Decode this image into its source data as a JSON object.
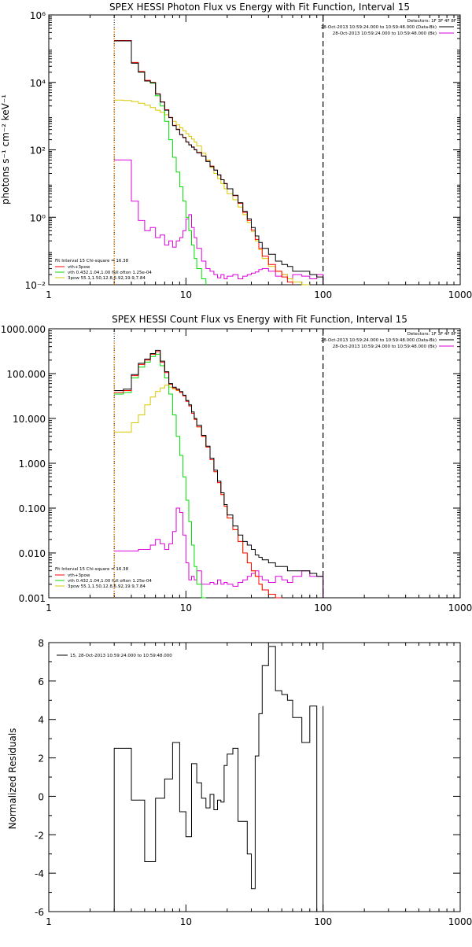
{
  "panel1": {
    "title": "SPEX HESSI Photon Flux vs Energy with Fit Function, Interval 15",
    "ylabel": "photons s⁻¹ cm⁻² keV⁻¹",
    "xticks": [
      "1",
      "10",
      "100",
      "1000"
    ],
    "yticks": [
      "10⁻²",
      "10⁰",
      "10²",
      "10⁴",
      "10⁶"
    ],
    "legend_top": [
      "Detectors: 1F 3F 4F 8F",
      "28-Oct-2013 10:59:24.000 to 10:59:48.000 (Data-Bk)",
      "28-Oct-2013 10:59:24.000 to 10:59:48.000 (Bk)"
    ],
    "legend_bottom": [
      "Fit Interval 15   Chi-square = 16.38",
      "vth+3pow",
      "vth 0.432,1.04,1.00  full ofton 1.25e-04",
      "3pow 55.1,1.50,12.8,5.92,19.9,7.84"
    ]
  },
  "panel2": {
    "title": "SPEX HESSI Count Flux vs Energy with Fit Function, Interval 15",
    "xticks": [
      "1",
      "10",
      "100",
      "1000"
    ],
    "yticks": [
      "0.001",
      "0.010",
      "0.100",
      "1.000",
      "10.000",
      "100.000",
      "1000.000"
    ],
    "legend_top": [
      "Detectors: 1F 3F 4F 8F",
      "28-Oct-2013 10:59:24.000 to 10:59:48.000 (Data-Bk)",
      "28-Oct-2013 10:59:24.000 to 10:59:48.000 (Bk)"
    ],
    "legend_bottom": [
      "Fit Interval 15   Chi-square = 16.38",
      "vth+3pow",
      "vth 0.432,1.04,1.00  full ofton 1.25e-04",
      "3pow 55.1,1.50,12.8,5.92,19.9,7.84"
    ]
  },
  "panel3": {
    "ylabel": "Normalized Residuals",
    "xticks": [
      "1",
      "10",
      "100",
      "1000"
    ],
    "yticks": [
      "-6",
      "-4",
      "-2",
      "0",
      "2",
      "4",
      "6",
      "8"
    ],
    "legend": "15, 28-Oct-2013 10:59:24.000 to 10:59:48.000"
  },
  "colors": {
    "data": "#000000",
    "total_fit": "#ff0000",
    "thermal": "#00dd00",
    "power": "#d8c800",
    "background": "#dd00dd",
    "marker": "#ff8c00"
  },
  "chart_data": [
    {
      "type": "line",
      "title": "SPEX HESSI Photon Flux vs Energy with Fit Function, Interval 15",
      "ylabel": "photons s⁻¹ cm⁻² keV⁻¹",
      "xscale": "log",
      "yscale": "log",
      "xlim": [
        1,
        1000
      ],
      "ylim": [
        0.01,
        1000000
      ],
      "vlines": [
        3,
        100
      ],
      "edges": [
        3,
        3.5,
        4,
        4.5,
        5,
        5.5,
        6,
        6.5,
        7,
        7.5,
        8,
        8.5,
        9,
        9.5,
        10,
        10.5,
        11,
        11.5,
        12,
        13,
        14,
        15,
        16,
        17,
        18,
        19,
        20,
        22,
        24,
        26,
        28,
        30,
        32,
        34,
        36,
        40,
        45,
        50,
        55,
        60,
        70,
        80,
        90,
        100
      ],
      "series": [
        {
          "name": "Data-Bk",
          "values": [
            170000,
            170000,
            37000,
            20000,
            11000,
            9800,
            4500,
            2600,
            1500,
            900,
            520,
            400,
            280,
            230,
            170,
            140,
            120,
            100,
            82,
            65,
            45,
            32,
            25,
            18,
            13,
            10,
            7,
            4.5,
            2.7,
            1.5,
            0.9,
            0.5,
            0.28,
            0.18,
            0.12,
            0.08,
            0.05,
            0.04,
            0.035,
            0.025,
            0.025,
            0.02,
            0.017
          ]
        },
        {
          "name": "vth+3pow",
          "values": [
            175000,
            175000,
            39000,
            21000,
            11500,
            10000,
            4600,
            2650,
            1550,
            920,
            530,
            410,
            285,
            235,
            172,
            142,
            122,
            102,
            84,
            66,
            46,
            33,
            25,
            18,
            13,
            10,
            7,
            4.4,
            2.6,
            1.4,
            0.8,
            0.42,
            0.22,
            0.12,
            0.07,
            0.04,
            0.025,
            0.017,
            0.012,
            0.009,
            0.008,
            0.007,
            0.006
          ]
        },
        {
          "name": "vth",
          "values": [
            170000,
            170000,
            38000,
            20000,
            11000,
            9500,
            4000,
            2000,
            700,
            200,
            60,
            22,
            8,
            3,
            1,
            0.4,
            0.15,
            0.06,
            0.03,
            0.015,
            0.008,
            0.005
          ]
        },
        {
          "name": "3pow",
          "values": [
            3000,
            2900,
            2700,
            2400,
            2100,
            1800,
            1500,
            1300,
            1100,
            900,
            700,
            550,
            450,
            370,
            300,
            250,
            210,
            170,
            130,
            80,
            50,
            30,
            20,
            14,
            10,
            7,
            5,
            3.3,
            2,
            1.2,
            0.7,
            0.38,
            0.2,
            0.11,
            0.06,
            0.035,
            0.025,
            0.02,
            0.015,
            0.012,
            0.01,
            0.008,
            0.006
          ]
        },
        {
          "name": "Bk",
          "values": [
            50,
            50,
            3,
            0.8,
            0.4,
            0.5,
            0.25,
            0.3,
            0.15,
            0.2,
            0.13,
            0.2,
            0.25,
            0.4,
            0.9,
            1.2,
            0.5,
            0.25,
            0.12,
            0.05,
            0.03,
            0.025,
            0.02,
            0.016,
            0.02,
            0.015,
            0.018,
            0.02,
            0.015,
            0.018,
            0.02,
            0.022,
            0.024,
            0.028,
            0.03,
            0.025,
            0.018,
            0.02,
            0.015,
            0.02,
            0.018,
            0.015,
            0.02
          ]
        }
      ]
    },
    {
      "type": "line",
      "title": "SPEX HESSI Count Flux vs Energy with Fit Function, Interval 15",
      "xscale": "log",
      "yscale": "log",
      "xlim": [
        1,
        1000
      ],
      "ylim": [
        0.001,
        1000
      ],
      "vlines": [
        3,
        100
      ],
      "edges": [
        3,
        3.5,
        4,
        4.5,
        5,
        5.5,
        6,
        6.5,
        7,
        7.5,
        8,
        8.5,
        9,
        9.5,
        10,
        10.5,
        11,
        11.5,
        12,
        13,
        14,
        15,
        16,
        17,
        18,
        19,
        20,
        22,
        24,
        26,
        28,
        30,
        32,
        34,
        36,
        40,
        45,
        50,
        55,
        60,
        70,
        80,
        90,
        100
      ],
      "series": [
        {
          "name": "Data-Bk",
          "values": [
            42,
            45,
            95,
            170,
            210,
            280,
            330,
            190,
            110,
            60,
            50,
            45,
            40,
            33,
            25,
            20,
            14,
            10,
            7,
            4.2,
            2.4,
            1.3,
            0.7,
            0.4,
            0.22,
            0.12,
            0.07,
            0.04,
            0.025,
            0.018,
            0.015,
            0.012,
            0.009,
            0.008,
            0.007,
            0.006,
            0.005,
            0.005,
            0.004,
            0.004,
            0.004,
            0.0035,
            0.003
          ]
        },
        {
          "name": "vth+3pow",
          "values": [
            38,
            42,
            90,
            160,
            200,
            270,
            310,
            180,
            105,
            58,
            48,
            43,
            38,
            32,
            24,
            19,
            13,
            9.5,
            6.5,
            4,
            2.3,
            1.2,
            0.65,
            0.37,
            0.2,
            0.11,
            0.06,
            0.033,
            0.018,
            0.01,
            0.006,
            0.004,
            0.003,
            0.002,
            0.0015,
            0.0012,
            0.001
          ]
        },
        {
          "name": "vth",
          "values": [
            35,
            38,
            80,
            140,
            180,
            240,
            270,
            150,
            80,
            35,
            12,
            4,
            1.5,
            0.5,
            0.15,
            0.05,
            0.015,
            0.005,
            0.002,
            0.001
          ]
        },
        {
          "name": "3pow",
          "values": [
            5,
            5,
            8,
            12,
            20,
            30,
            40,
            48,
            55,
            50,
            45,
            42,
            38,
            32,
            25,
            19,
            13,
            9.5,
            6.5,
            4,
            2.3,
            1.2,
            0.65,
            0.37,
            0.2,
            0.11,
            0.06,
            0.033,
            0.018,
            0.01,
            0.006,
            0.004,
            0.003,
            0.002,
            0.0015,
            0.0012,
            0.001
          ]
        },
        {
          "name": "Bk",
          "values": [
            0.011,
            0.011,
            0.011,
            0.012,
            0.012,
            0.015,
            0.02,
            0.016,
            0.012,
            0.016,
            0.03,
            0.1,
            0.08,
            0.025,
            0.006,
            0.0025,
            0.003,
            0.0025,
            0.004,
            0.002,
            0.002,
            0.0022,
            0.002,
            0.0025,
            0.002,
            0.0022,
            0.002,
            0.0018,
            0.0022,
            0.0025,
            0.003,
            0.0035,
            0.004,
            0.003,
            0.0025,
            0.0022,
            0.003,
            0.0025,
            0.0022,
            0.003,
            0.004,
            0.003,
            0.003
          ]
        }
      ]
    },
    {
      "type": "line",
      "ylabel": "Normalized Residuals",
      "xscale": "log",
      "yscale": "linear",
      "xlim": [
        1,
        1000
      ],
      "ylim": [
        -6,
        8
      ],
      "edges": [
        3,
        3.5,
        4,
        4.5,
        5,
        5.5,
        6,
        6.5,
        7,
        7.5,
        8,
        8.5,
        9,
        9.5,
        10,
        10.5,
        11,
        11.5,
        12,
        13,
        14,
        15,
        16,
        17,
        18,
        19,
        20,
        22,
        24,
        26,
        28,
        30,
        32,
        34,
        36,
        40,
        45,
        50,
        55,
        60,
        70,
        80,
        90,
        100
      ],
      "series": [
        {
          "name": "15, 28-Oct-2013 10:59:24.000 to 10:59:48.000",
          "values": [
            2.5,
            2.5,
            -0.2,
            -0.2,
            -3.4,
            -3.4,
            -0.1,
            -0.1,
            0.9,
            0.9,
            2.8,
            2.8,
            -0.8,
            -0.8,
            -2.1,
            -2.1,
            1.7,
            1.7,
            0.7,
            -0.1,
            -0.6,
            0.1,
            -0.7,
            -0.2,
            -0.3,
            1.6,
            2.2,
            2.5,
            -1.3,
            -1.3,
            -3.0,
            -4.8,
            2.1,
            4.3,
            6.8,
            7.8,
            5.5,
            5.3,
            5.0,
            4.1,
            2.8,
            4.7,
            -6.0
          ]
        }
      ]
    }
  ]
}
